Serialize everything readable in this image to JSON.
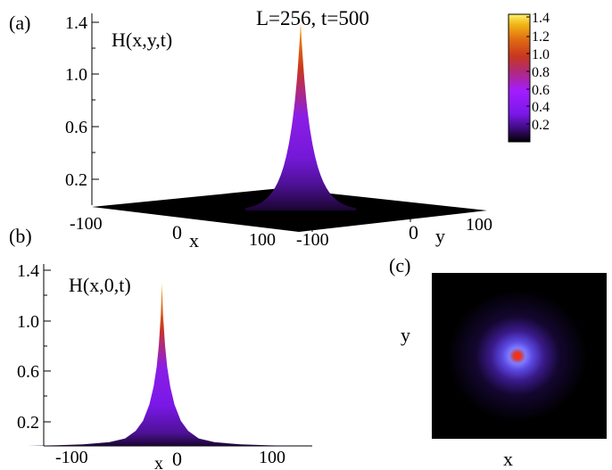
{
  "colors": {
    "background": "#ffffff",
    "floor": "#000000",
    "peak_colormap": [
      "#000000",
      "#3b0a78",
      "#7a18e8",
      "#a41cff",
      "#b02a7a",
      "#c8361f",
      "#e06a12",
      "#f2b516",
      "#fff36b"
    ]
  },
  "chart_data": [
    {
      "panel": "(a)",
      "type": "surface",
      "title": "L=256, t=500",
      "zlabel": "H(x,y,t)",
      "xlabel": "x",
      "ylabel": "y",
      "z_ticks": [
        "1.4",
        "1.0",
        "0.6",
        "0.2"
      ],
      "x_ticks": [
        "-100",
        "0",
        "100"
      ],
      "y_ticks": [
        "-100",
        "0",
        "100"
      ],
      "colorbar_ticks": [
        "1.4",
        "1.2",
        "1.0",
        "0.8",
        "0.6",
        "0.4",
        "0.2"
      ],
      "zlim": [
        0,
        1.4
      ],
      "peak": {
        "x": 0,
        "y": 0,
        "z": 1.4
      }
    },
    {
      "panel": "(b)",
      "type": "area",
      "ylabel": "H(x,0,t)",
      "xlabel": "x",
      "x_ticks": [
        "-100",
        "0",
        "100"
      ],
      "y_ticks": [
        "1.4",
        "1.0",
        "0.6",
        "0.2"
      ],
      "xlim": [
        -128,
        128
      ],
      "ylim": [
        0,
        1.4
      ],
      "x": [
        -128,
        -100,
        -75,
        -50,
        -35,
        -25,
        -18,
        -12,
        -8,
        -5,
        -3,
        -1,
        0,
        1,
        3,
        5,
        8,
        12,
        18,
        25,
        35,
        50,
        75,
        100,
        128
      ],
      "y": [
        0.0,
        0.005,
        0.012,
        0.03,
        0.06,
        0.12,
        0.2,
        0.33,
        0.47,
        0.63,
        0.8,
        1.05,
        1.3,
        1.05,
        0.8,
        0.63,
        0.47,
        0.33,
        0.2,
        0.12,
        0.06,
        0.03,
        0.012,
        0.005,
        0.0
      ]
    },
    {
      "panel": "(c)",
      "type": "heatmap",
      "xlabel": "x",
      "ylabel": "y"
    }
  ]
}
